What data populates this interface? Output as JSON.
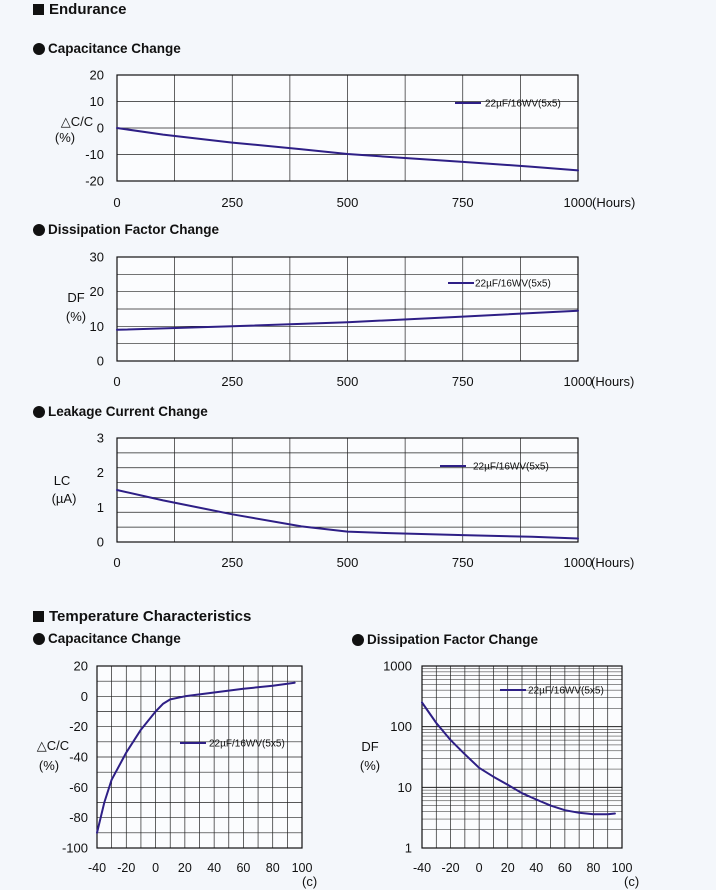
{
  "endurance": {
    "heading": "Endurance",
    "capacitance": {
      "title": "Capacitance Change"
    },
    "dissipation": {
      "title": "Dissipation Factor Change"
    },
    "leakage": {
      "title": "Leakage Current Change"
    }
  },
  "temperature": {
    "heading": "Temperature Characteristics",
    "capacitance": {
      "title": "Capacitance Change"
    },
    "dissipation": {
      "title": "Dissipation Factor Change"
    }
  },
  "colors": {
    "series": "#2e1f86",
    "grid": "#222222"
  },
  "chart_data": [
    {
      "id": "endurance_capacitance",
      "type": "line",
      "title": "Capacitance Change",
      "xlabel": "(Hours)",
      "ylabel": [
        "△C/C",
        "(%)"
      ],
      "xlim": [
        0,
        1000
      ],
      "ylim": [
        -20,
        20
      ],
      "xticks": [
        0,
        250,
        500,
        750,
        1000
      ],
      "yticks": [
        20,
        10,
        0,
        -10,
        -20
      ],
      "grid": true,
      "legend_position": "top-right",
      "series": [
        {
          "name": "22µF/16WV(5x5)",
          "x": [
            0,
            100,
            250,
            400,
            500,
            600,
            750,
            900,
            1000
          ],
          "y": [
            0,
            -2.5,
            -5.5,
            -8,
            -9.8,
            -11,
            -12.8,
            -14.6,
            -16
          ]
        }
      ]
    },
    {
      "id": "endurance_dissipation",
      "type": "line",
      "title": "Dissipation Factor Change",
      "xlabel": "(Hours)",
      "ylabel": [
        "DF",
        "(%)"
      ],
      "xlim": [
        0,
        1000
      ],
      "ylim": [
        0,
        30
      ],
      "xticks": [
        0,
        250,
        500,
        750,
        1000
      ],
      "yticks": [
        30,
        20,
        10,
        0
      ],
      "grid": true,
      "legend_position": "top-right",
      "series": [
        {
          "name": "22µF/16WV(5x5)",
          "x": [
            0,
            250,
            500,
            750,
            1000
          ],
          "y": [
            9,
            10,
            11.2,
            12.8,
            14.5
          ]
        }
      ]
    },
    {
      "id": "endurance_leakage",
      "type": "line",
      "title": "Leakage Current Change",
      "xlabel": "(Hours)",
      "ylabel": [
        "LC",
        "(µA)"
      ],
      "xlim": [
        0,
        1000
      ],
      "ylim": [
        0,
        3
      ],
      "xticks": [
        0,
        250,
        500,
        750,
        1000
      ],
      "yticks": [
        3,
        2,
        1,
        0
      ],
      "grid": true,
      "legend_position": "top-right",
      "series": [
        {
          "name": "22µF/16WV(5x5)",
          "x": [
            0,
            100,
            250,
            400,
            500,
            600,
            750,
            900,
            1000
          ],
          "y": [
            1.5,
            1.2,
            0.8,
            0.45,
            0.3,
            0.25,
            0.2,
            0.15,
            0.1
          ]
        }
      ]
    },
    {
      "id": "temperature_capacitance",
      "type": "line",
      "title": "Capacitance Change",
      "xlabel": "(c)",
      "ylabel": [
        "△C/C",
        "(%)"
      ],
      "xlim": [
        -40,
        100
      ],
      "ylim": [
        -100,
        20
      ],
      "xticks": [
        -40,
        -20,
        0,
        20,
        40,
        60,
        80,
        100
      ],
      "yticks": [
        20,
        0,
        -20,
        -40,
        -60,
        -80,
        -100
      ],
      "grid": true,
      "legend_position": "center-right",
      "series": [
        {
          "name": "22µF/16WV(5x5)",
          "x": [
            -40,
            -35,
            -30,
            -20,
            -10,
            0,
            5,
            10,
            20,
            40,
            60,
            80,
            95
          ],
          "y": [
            -90,
            -70,
            -55,
            -37,
            -22,
            -10,
            -5,
            -2,
            0,
            2.5,
            5,
            7,
            9
          ]
        }
      ]
    },
    {
      "id": "temperature_dissipation",
      "type": "line",
      "title": "Dissipation Factor Change",
      "xlabel": "(c)",
      "ylabel": [
        "DF",
        "(%)"
      ],
      "xscale": "log-y",
      "xlim": [
        -40,
        100
      ],
      "ylim": [
        1,
        1000
      ],
      "xticks": [
        -40,
        -20,
        0,
        20,
        40,
        60,
        80,
        100
      ],
      "yticks": [
        1000,
        100,
        10,
        1
      ],
      "grid": true,
      "legend_position": "top-right",
      "series": [
        {
          "name": "22µF/16WV(5x5)",
          "x": [
            -40,
            -30,
            -20,
            -10,
            0,
            10,
            20,
            30,
            40,
            50,
            60,
            70,
            80,
            90,
            95
          ],
          "y": [
            250,
            115,
            60,
            35,
            21,
            15,
            11,
            8,
            6.3,
            5,
            4.2,
            3.8,
            3.6,
            3.6,
            3.7
          ]
        }
      ]
    }
  ]
}
